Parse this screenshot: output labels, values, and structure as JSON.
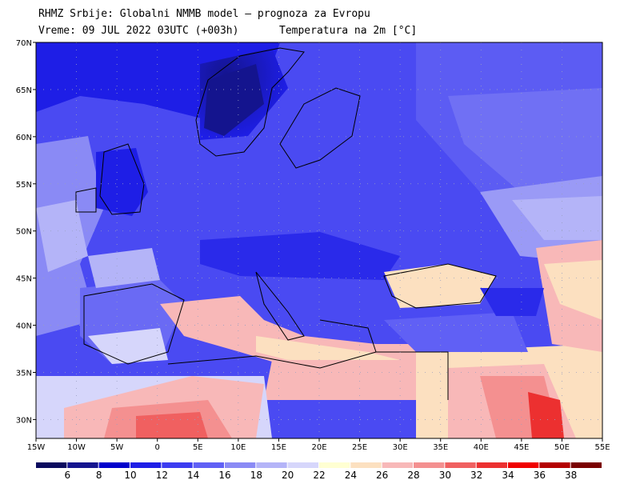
{
  "header": {
    "title": "RHMZ Srbije: Globalni NMMB model — prognoza za Evropu",
    "valid_time": "Vreme: 09 JUL 2022 03UTC (+003h)",
    "parameter": "Temperatura na 2m [°C]"
  },
  "map": {
    "lon_range": [
      -15,
      55
    ],
    "lat_range": [
      28,
      70
    ],
    "lon_ticks": [
      "15W",
      "10W",
      "5W",
      "0",
      "5E",
      "10E",
      "15E",
      "20E",
      "25E",
      "30E",
      "35E",
      "40E",
      "45E",
      "50E",
      "55E"
    ],
    "lat_ticks": [
      "30N",
      "35N",
      "40N",
      "45N",
      "50N",
      "55N",
      "60N",
      "65N",
      "70N"
    ],
    "graticule": "dotted"
  },
  "colorbar": {
    "labels": [
      "6",
      "8",
      "10",
      "12",
      "14",
      "16",
      "18",
      "20",
      "22",
      "24",
      "26",
      "28",
      "30",
      "32",
      "34",
      "36",
      "38"
    ],
    "colors": [
      "#0b0b5e",
      "#14148e",
      "#0000cc",
      "#1e1ee6",
      "#3c3cf0",
      "#6060f5",
      "#8a8af5",
      "#b4b4f8",
      "#d6d6fb",
      "#ffffd2",
      "#fce0c0",
      "#f8b8b8",
      "#f49090",
      "#f06060",
      "#ec3030",
      "#f00000",
      "#b40000",
      "#7a0000"
    ]
  }
}
